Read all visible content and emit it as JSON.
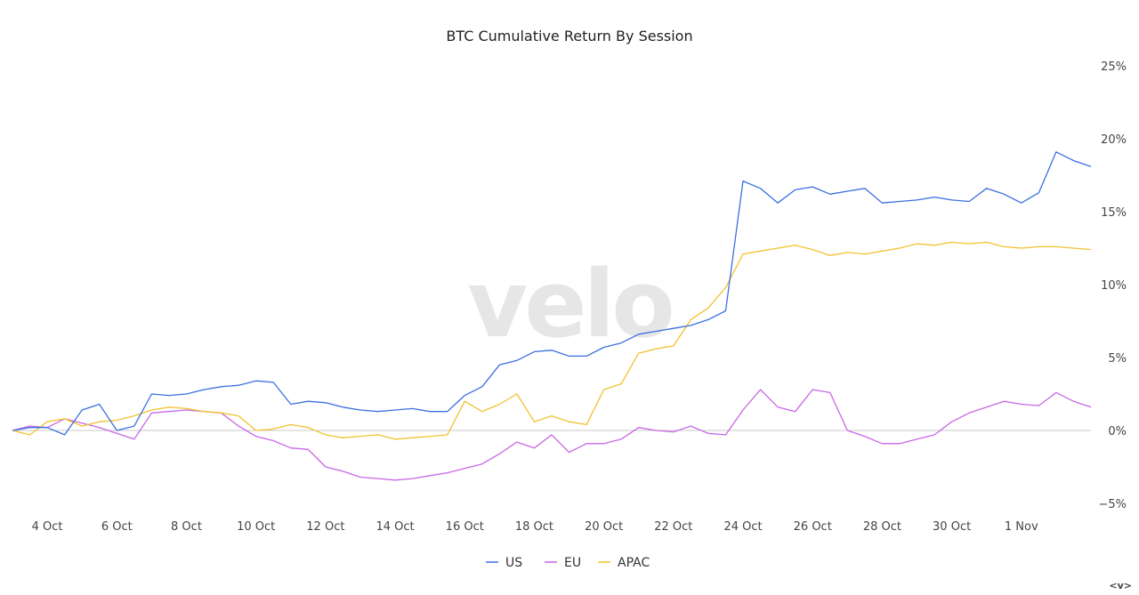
{
  "chart_data": {
    "type": "line",
    "title": "BTC Cumulative Return By Session",
    "watermark": "velo",
    "xlabel": "",
    "ylabel": "",
    "x_axis": {
      "start": "2023-10-03",
      "end": "2023-11-03",
      "ticks": [
        "4 Oct",
        "6 Oct",
        "8 Oct",
        "10 Oct",
        "12 Oct",
        "14 Oct",
        "16 Oct",
        "18 Oct",
        "20 Oct",
        "22 Oct",
        "24 Oct",
        "26 Oct",
        "28 Oct",
        "30 Oct",
        "1 Nov"
      ],
      "tick_dates": [
        "2023-10-04",
        "2023-10-06",
        "2023-10-08",
        "2023-10-10",
        "2023-10-12",
        "2023-10-14",
        "2023-10-16",
        "2023-10-18",
        "2023-10-20",
        "2023-10-22",
        "2023-10-24",
        "2023-10-26",
        "2023-10-28",
        "2023-10-30",
        "2023-11-01"
      ]
    },
    "y_axis": {
      "ylim": [
        -5,
        25
      ],
      "ticks": [
        25,
        20,
        15,
        10,
        5,
        0,
        -5
      ],
      "tick_labels": [
        "25%",
        "20%",
        "15%",
        "10%",
        "5%",
        "0%",
        "−5%"
      ],
      "position": "right",
      "zero_line": true
    },
    "grid": false,
    "legend": {
      "placement": "bottom-center"
    },
    "series": [
      {
        "name": "US",
        "color": "#3b6fe0",
        "x": [
          "2023-10-03",
          "2023-10-03T12:00",
          "2023-10-04",
          "2023-10-04T12:00",
          "2023-10-05",
          "2023-10-05T12:00",
          "2023-10-06",
          "2023-10-06T12:00",
          "2023-10-07",
          "2023-10-07T12:00",
          "2023-10-08",
          "2023-10-08T12:00",
          "2023-10-09",
          "2023-10-09T12:00",
          "2023-10-10",
          "2023-10-10T12:00",
          "2023-10-11",
          "2023-10-11T12:00",
          "2023-10-12",
          "2023-10-12T12:00",
          "2023-10-13",
          "2023-10-13T12:00",
          "2023-10-14",
          "2023-10-14T12:00",
          "2023-10-15",
          "2023-10-15T12:00",
          "2023-10-16",
          "2023-10-16T12:00",
          "2023-10-17",
          "2023-10-17T12:00",
          "2023-10-18",
          "2023-10-18T12:00",
          "2023-10-19",
          "2023-10-19T12:00",
          "2023-10-20",
          "2023-10-20T12:00",
          "2023-10-21",
          "2023-10-21T12:00",
          "2023-10-22",
          "2023-10-22T12:00",
          "2023-10-23",
          "2023-10-23T12:00",
          "2023-10-24",
          "2023-10-24T12:00",
          "2023-10-25",
          "2023-10-25T12:00",
          "2023-10-26",
          "2023-10-26T12:00",
          "2023-10-27",
          "2023-10-27T12:00",
          "2023-10-28",
          "2023-10-28T12:00",
          "2023-10-29",
          "2023-10-29T12:00",
          "2023-10-30",
          "2023-10-30T12:00",
          "2023-10-31",
          "2023-10-31T12:00",
          "2023-11-01",
          "2023-11-01T12:00",
          "2023-11-02",
          "2023-11-02T12:00",
          "2023-11-03"
        ],
        "values": [
          0.0,
          0.2,
          0.2,
          -0.3,
          1.4,
          1.8,
          0.0,
          0.3,
          2.5,
          2.4,
          2.5,
          2.8,
          3.0,
          3.1,
          3.4,
          3.3,
          1.8,
          2.0,
          1.9,
          1.6,
          1.4,
          1.3,
          1.4,
          1.5,
          1.3,
          1.3,
          2.4,
          3.0,
          4.5,
          4.8,
          5.4,
          5.5,
          5.1,
          5.1,
          5.7,
          6.0,
          6.6,
          6.8,
          7.0,
          7.2,
          7.6,
          8.2,
          17.1,
          16.6,
          15.6,
          16.5,
          16.7,
          16.2,
          16.4,
          16.6,
          15.6,
          15.7,
          15.8,
          16.0,
          15.8,
          15.7,
          16.6,
          16.2,
          15.6,
          16.3,
          19.1,
          18.5,
          18.1
        ]
      },
      {
        "name": "EU",
        "color": "#c966e6",
        "x": [
          "2023-10-03",
          "2023-10-03T12:00",
          "2023-10-04",
          "2023-10-04T12:00",
          "2023-10-05",
          "2023-10-05T12:00",
          "2023-10-06",
          "2023-10-06T12:00",
          "2023-10-07",
          "2023-10-07T12:00",
          "2023-10-08",
          "2023-10-08T12:00",
          "2023-10-09",
          "2023-10-09T12:00",
          "2023-10-10",
          "2023-10-10T12:00",
          "2023-10-11",
          "2023-10-11T12:00",
          "2023-10-12",
          "2023-10-12T12:00",
          "2023-10-13",
          "2023-10-13T12:00",
          "2023-10-14",
          "2023-10-14T12:00",
          "2023-10-15",
          "2023-10-15T12:00",
          "2023-10-16",
          "2023-10-16T12:00",
          "2023-10-17",
          "2023-10-17T12:00",
          "2023-10-18",
          "2023-10-18T12:00",
          "2023-10-19",
          "2023-10-19T12:00",
          "2023-10-20",
          "2023-10-20T12:00",
          "2023-10-21",
          "2023-10-21T12:00",
          "2023-10-22",
          "2023-10-22T12:00",
          "2023-10-23",
          "2023-10-23T12:00",
          "2023-10-24",
          "2023-10-24T12:00",
          "2023-10-25",
          "2023-10-25T12:00",
          "2023-10-26",
          "2023-10-26T12:00",
          "2023-10-27",
          "2023-10-27T12:00",
          "2023-10-28",
          "2023-10-28T12:00",
          "2023-10-29",
          "2023-10-29T12:00",
          "2023-10-30",
          "2023-10-30T12:00",
          "2023-10-31",
          "2023-10-31T12:00",
          "2023-11-01",
          "2023-11-01T12:00",
          "2023-11-02",
          "2023-11-02T12:00",
          "2023-11-03"
        ],
        "values": [
          0.0,
          0.3,
          0.2,
          0.8,
          0.5,
          0.2,
          -0.2,
          -0.6,
          1.2,
          1.3,
          1.4,
          1.3,
          1.2,
          0.3,
          -0.4,
          -0.7,
          -1.2,
          -1.3,
          -2.5,
          -2.8,
          -3.2,
          -3.3,
          -3.4,
          -3.3,
          -3.1,
          -2.9,
          -2.6,
          -2.3,
          -1.6,
          -0.8,
          -1.2,
          -0.3,
          -1.5,
          -0.9,
          -0.9,
          -0.6,
          0.2,
          0.0,
          -0.1,
          0.3,
          -0.2,
          -0.3,
          1.4,
          2.8,
          1.6,
          1.3,
          2.8,
          2.6,
          0.0,
          -0.4,
          -0.9,
          -0.9,
          -0.6,
          -0.3,
          0.6,
          1.2,
          1.6,
          2.0,
          1.8,
          1.7,
          2.6,
          2.0,
          1.6
        ]
      },
      {
        "name": "APAC",
        "color": "#f2c230",
        "x": [
          "2023-10-03",
          "2023-10-03T12:00",
          "2023-10-04",
          "2023-10-04T12:00",
          "2023-10-05",
          "2023-10-05T12:00",
          "2023-10-06",
          "2023-10-06T12:00",
          "2023-10-07",
          "2023-10-07T12:00",
          "2023-10-08",
          "2023-10-08T12:00",
          "2023-10-09",
          "2023-10-09T12:00",
          "2023-10-10",
          "2023-10-10T12:00",
          "2023-10-11",
          "2023-10-11T12:00",
          "2023-10-12",
          "2023-10-12T12:00",
          "2023-10-13",
          "2023-10-13T12:00",
          "2023-10-14",
          "2023-10-14T12:00",
          "2023-10-15",
          "2023-10-15T12:00",
          "2023-10-16",
          "2023-10-16T12:00",
          "2023-10-17",
          "2023-10-17T12:00",
          "2023-10-18",
          "2023-10-18T12:00",
          "2023-10-19",
          "2023-10-19T12:00",
          "2023-10-20",
          "2023-10-20T12:00",
          "2023-10-21",
          "2023-10-21T12:00",
          "2023-10-22",
          "2023-10-22T12:00",
          "2023-10-23",
          "2023-10-23T12:00",
          "2023-10-24",
          "2023-10-24T12:00",
          "2023-10-25",
          "2023-10-25T12:00",
          "2023-10-26",
          "2023-10-26T12:00",
          "2023-10-27",
          "2023-10-27T12:00",
          "2023-10-28",
          "2023-10-28T12:00",
          "2023-10-29",
          "2023-10-29T12:00",
          "2023-10-30",
          "2023-10-30T12:00",
          "2023-10-31",
          "2023-10-31T12:00",
          "2023-11-01",
          "2023-11-01T12:00",
          "2023-11-02",
          "2023-11-02T12:00",
          "2023-11-03"
        ],
        "values": [
          0.0,
          -0.3,
          0.6,
          0.8,
          0.3,
          0.6,
          0.7,
          1.0,
          1.4,
          1.6,
          1.5,
          1.3,
          1.2,
          1.0,
          0.0,
          0.1,
          0.4,
          0.2,
          -0.3,
          -0.5,
          -0.4,
          -0.3,
          -0.6,
          -0.5,
          -0.4,
          -0.3,
          2.0,
          1.3,
          1.8,
          2.5,
          0.6,
          1.0,
          0.6,
          0.4,
          2.8,
          3.2,
          5.3,
          5.6,
          5.8,
          7.6,
          8.4,
          9.8,
          12.1,
          12.3,
          12.5,
          12.7,
          12.4,
          12.0,
          12.2,
          12.1,
          12.3,
          12.5,
          12.8,
          12.7,
          12.9,
          12.8,
          12.9,
          12.6,
          12.5,
          12.6,
          12.6,
          12.5,
          12.4
        ]
      }
    ]
  },
  "footer": {
    "corner_glyph": "<v>"
  }
}
